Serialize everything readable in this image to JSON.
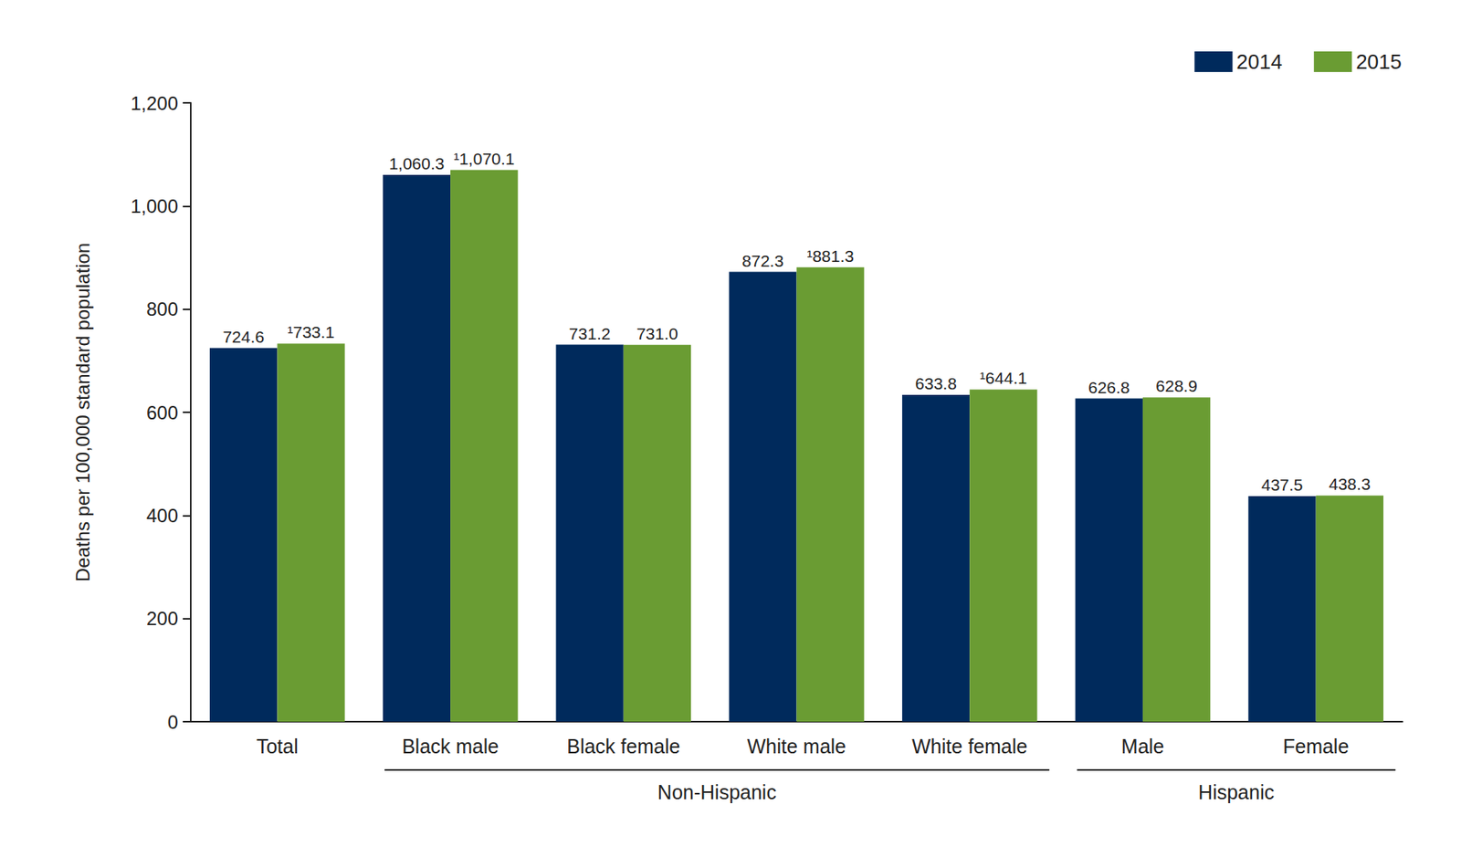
{
  "chart_data": {
    "type": "bar",
    "y_label": "Deaths per 100,000 standard population",
    "categories": [
      "Total",
      "Black male",
      "Black female",
      "White male",
      "White female",
      "Male",
      "Female"
    ],
    "series": [
      {
        "name": "2014",
        "color": "#002a5c",
        "values": [
          724.6,
          1060.3,
          731.2,
          872.3,
          633.8,
          626.8,
          437.5
        ],
        "value_labels": [
          "724.6",
          "1,060.3",
          "731.2",
          "872.3",
          "633.8",
          "626.8",
          "437.5"
        ]
      },
      {
        "name": "2015",
        "color": "#6a9c33",
        "values": [
          733.1,
          1070.1,
          731.0,
          881.3,
          644.1,
          628.9,
          438.3
        ],
        "value_labels": [
          "¹733.1",
          "¹1,070.1",
          "731.0",
          "¹881.3",
          "¹644.1",
          "628.9",
          "438.3"
        ]
      }
    ],
    "annotations": [
      {
        "text": "Non-Hispanic",
        "from": "Black male",
        "to": "White female"
      },
      {
        "text": "Hispanic",
        "from": "Male",
        "to": "Female"
      }
    ],
    "ylim": [
      0,
      1200
    ],
    "yticks": [
      0,
      200,
      400,
      600,
      800,
      {
        "value": 1000,
        "label": "1,000"
      },
      {
        "value": 1200,
        "label": "1,200"
      }
    ],
    "grid": false,
    "legend": "upper right",
    "data_labels": true
  }
}
